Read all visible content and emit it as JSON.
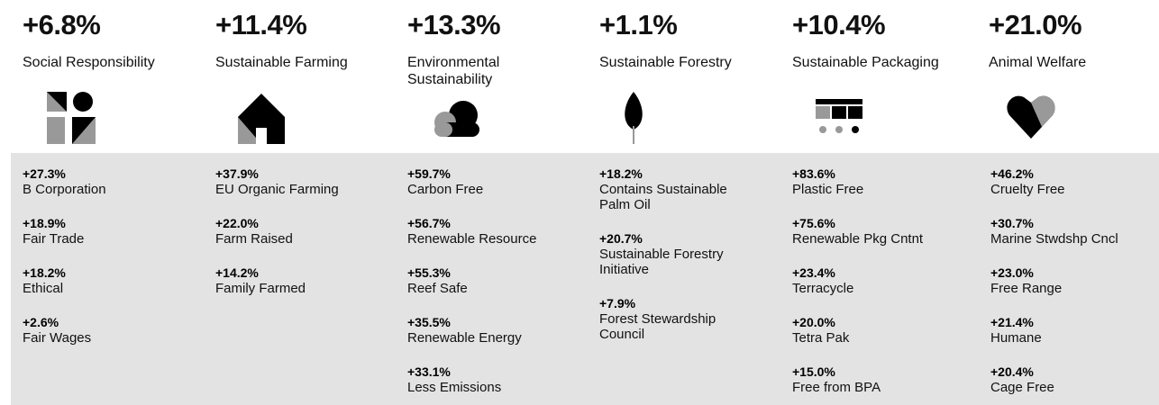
{
  "columns": [
    {
      "headline": "+6.8%",
      "title": "Social Responsibility",
      "items": [
        {
          "pct": "+27.3%",
          "label": "B Corporation"
        },
        {
          "pct": "+18.9%",
          "label": "Fair Trade"
        },
        {
          "pct": "+18.2%",
          "label": "Ethical"
        },
        {
          "pct": "+2.6%",
          "label": "Fair Wages"
        }
      ]
    },
    {
      "headline": "+11.4%",
      "title": "Sustainable Farming",
      "items": [
        {
          "pct": "+37.9%",
          "label": "EU Organic Farming"
        },
        {
          "pct": "+22.0%",
          "label": "Farm Raised"
        },
        {
          "pct": "+14.2%",
          "label": "Family Farmed"
        }
      ]
    },
    {
      "headline": "+13.3%",
      "title": "Environmental Sustainability",
      "items": [
        {
          "pct": "+59.7%",
          "label": "Carbon Free"
        },
        {
          "pct": "+56.7%",
          "label": "Renewable Resource"
        },
        {
          "pct": "+55.3%",
          "label": "Reef Safe"
        },
        {
          "pct": "+35.5%",
          "label": "Renewable Energy"
        },
        {
          "pct": "+33.1%",
          "label": "Less Emissions"
        }
      ]
    },
    {
      "headline": "+1.1%",
      "title": "Sustainable Forestry",
      "items": [
        {
          "pct": "+18.2%",
          "label": "Contains Sustainable Palm Oil"
        },
        {
          "pct": "+20.7%",
          "label": "Sustainable Forestry Initiative"
        },
        {
          "pct": "+7.9%",
          "label": "Forest Stewardship Council"
        }
      ]
    },
    {
      "headline": "+10.4%",
      "title": "Sustainable Packaging",
      "items": [
        {
          "pct": "+83.6%",
          "label": "Plastic Free"
        },
        {
          "pct": "+75.6%",
          "label": "Renewable Pkg Cntnt"
        },
        {
          "pct": "+23.4%",
          "label": "Terracycle"
        },
        {
          "pct": "+20.0%",
          "label": "Tetra Pak"
        },
        {
          "pct": "+15.0%",
          "label": "Free from BPA"
        }
      ]
    },
    {
      "headline": "+21.0%",
      "title": "Animal Welfare",
      "items": [
        {
          "pct": "+46.2%",
          "label": "Cruelty Free"
        },
        {
          "pct": "+30.7%",
          "label": "Marine Stwdshp Cncl"
        },
        {
          "pct": "+23.0%",
          "label": "Free Range"
        },
        {
          "pct": "+21.4%",
          "label": "Humane"
        },
        {
          "pct": "+20.4%",
          "label": "Cage Free"
        }
      ]
    }
  ]
}
